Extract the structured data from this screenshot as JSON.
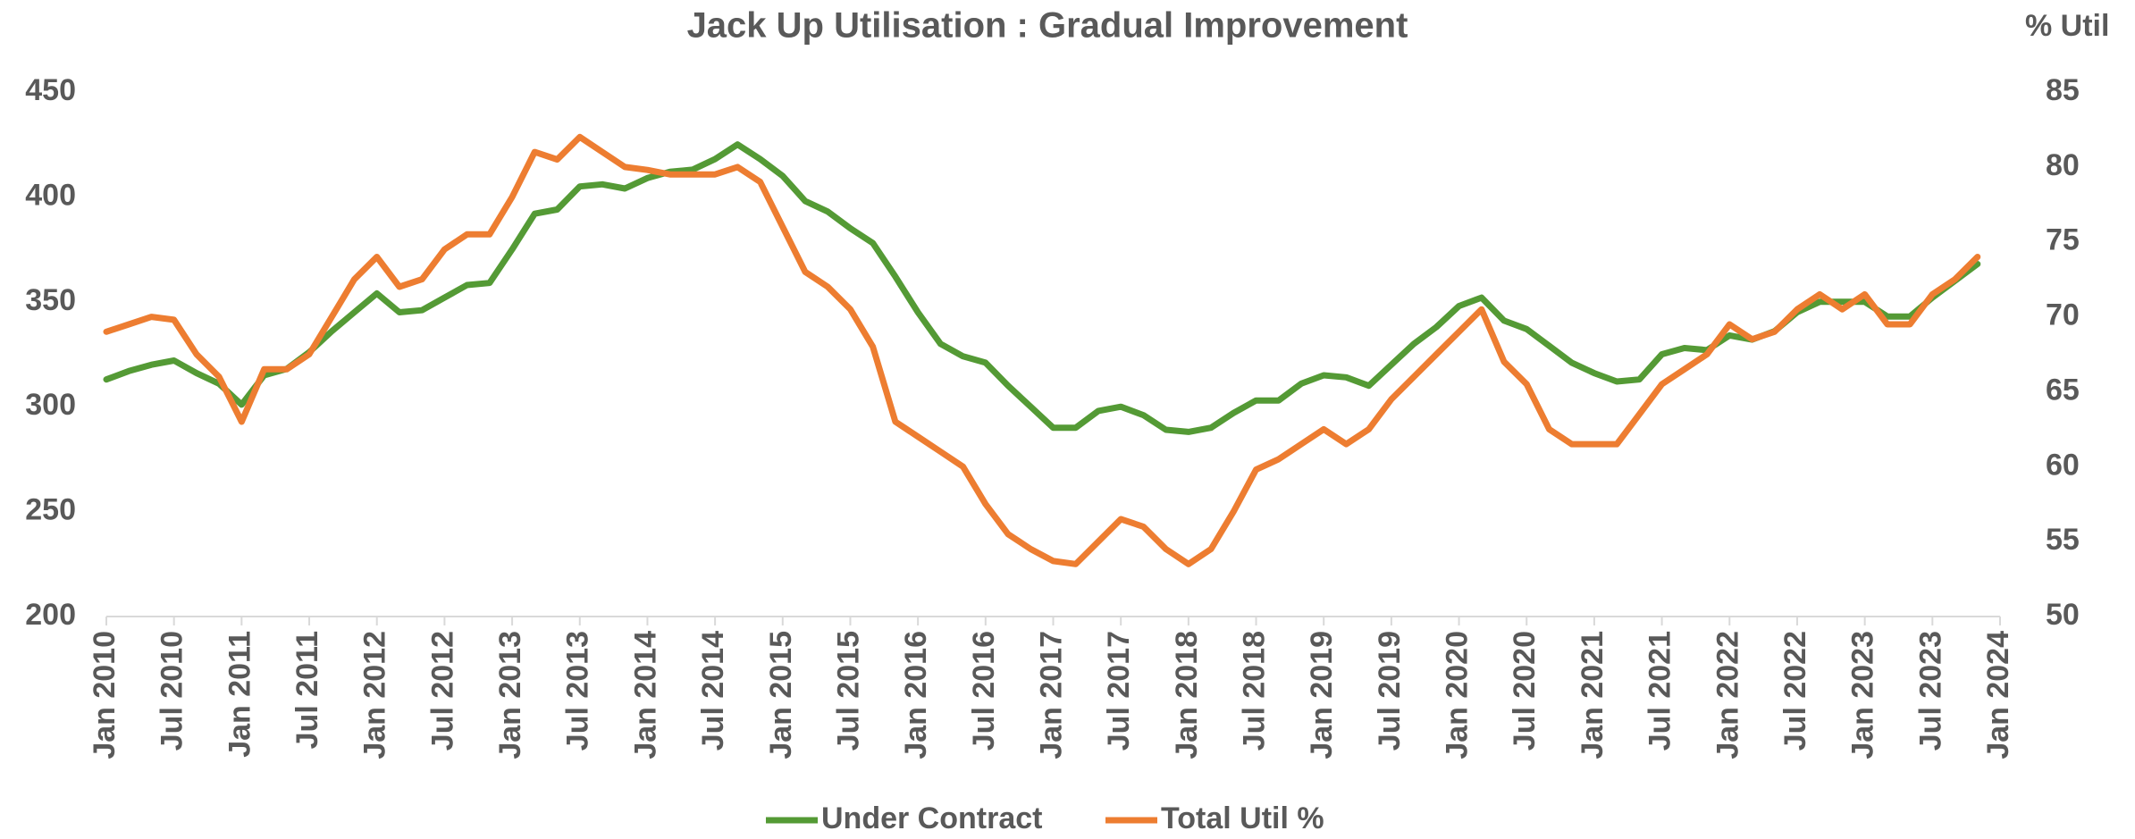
{
  "chart_data": {
    "type": "line",
    "title": "Jack Up Utilisation : Gradual Improvement",
    "y2label": "% Util",
    "categories": [
      "Jan 2010",
      null,
      null,
      "Jul 2010",
      null,
      null,
      "Jan 2011",
      null,
      null,
      "Jul 2011",
      null,
      null,
      "Jan 2012",
      null,
      null,
      "Jul 2012",
      null,
      null,
      "Jan 2013",
      null,
      null,
      "Jul 2013",
      null,
      null,
      "Jan 2014",
      null,
      null,
      "Jul 2014",
      null,
      null,
      "Jan 2015",
      null,
      null,
      "Jul 2015",
      null,
      null,
      "Jan 2016",
      null,
      null,
      "Jul 2016",
      null,
      null,
      "Jan 2017",
      null,
      null,
      "Jul 2017",
      null,
      null,
      "Jan 2018",
      null,
      null,
      "Jul 2018",
      null,
      null,
      "Jan 2019",
      null,
      null,
      "Jul 2019",
      null,
      null,
      "Jan 2020",
      null,
      null,
      "Jul 2020",
      null,
      null,
      "Jan 2021",
      null,
      null,
      "Jul 2021",
      null,
      null,
      "Jan 2022",
      null,
      null,
      "Jul 2022",
      null,
      null,
      "Jan 2023",
      null,
      null,
      "Jul 2023",
      null,
      null,
      "Jan 2024"
    ],
    "series": [
      {
        "name": "Under Contract",
        "color": "#549a35",
        "axis": "y",
        "values": [
          313,
          317,
          320,
          322,
          316,
          311,
          301,
          315,
          318,
          326,
          336,
          345,
          354,
          345,
          346,
          352,
          358,
          359,
          375,
          392,
          394,
          405,
          406,
          404,
          409,
          412,
          413,
          418,
          425,
          418,
          410,
          398,
          393,
          385,
          378,
          362,
          345,
          330,
          324,
          321,
          310,
          300,
          290,
          290,
          298,
          300,
          296,
          289,
          288,
          290,
          297,
          303,
          303,
          311,
          315,
          314,
          310,
          320,
          330,
          338,
          348,
          352,
          341,
          337,
          329,
          321,
          316,
          312,
          313,
          325,
          328,
          327,
          334,
          332,
          336,
          345,
          350,
          350,
          350,
          343,
          343,
          352,
          360,
          368,
          null
        ]
      },
      {
        "name": "Total Util %",
        "color": "#ed7d31",
        "axis": "y2",
        "values": [
          69,
          69.5,
          70,
          69.8,
          67.5,
          66,
          63,
          66.5,
          66.5,
          67.5,
          70,
          72.5,
          74,
          72,
          72.5,
          74.5,
          75.5,
          75.5,
          78,
          81,
          80.5,
          82,
          81,
          80,
          79.8,
          79.5,
          79.5,
          79.5,
          80,
          79,
          76,
          73,
          72,
          70.5,
          68,
          63,
          62,
          61,
          60,
          57.5,
          55.5,
          54.5,
          53.7,
          53.5,
          55,
          56.5,
          56,
          54.5,
          53.5,
          54.5,
          57,
          59.8,
          60.5,
          61.5,
          62.5,
          61.5,
          62.5,
          64.5,
          66,
          67.5,
          69,
          70.5,
          67,
          65.5,
          62.5,
          61.5,
          61.5,
          61.5,
          63.5,
          65.5,
          66.5,
          67.5,
          69.5,
          68.5,
          69,
          70.5,
          71.5,
          70.5,
          71.5,
          69.5,
          69.5,
          71.5,
          72.5,
          74,
          null
        ]
      }
    ],
    "ylim": [
      200,
      450
    ],
    "yticks": [
      200,
      250,
      300,
      350,
      400,
      450
    ],
    "y2lim": [
      50,
      85
    ],
    "y2ticks": [
      50,
      55,
      60,
      65,
      70,
      75,
      80,
      85
    ],
    "legend": "bottom"
  }
}
